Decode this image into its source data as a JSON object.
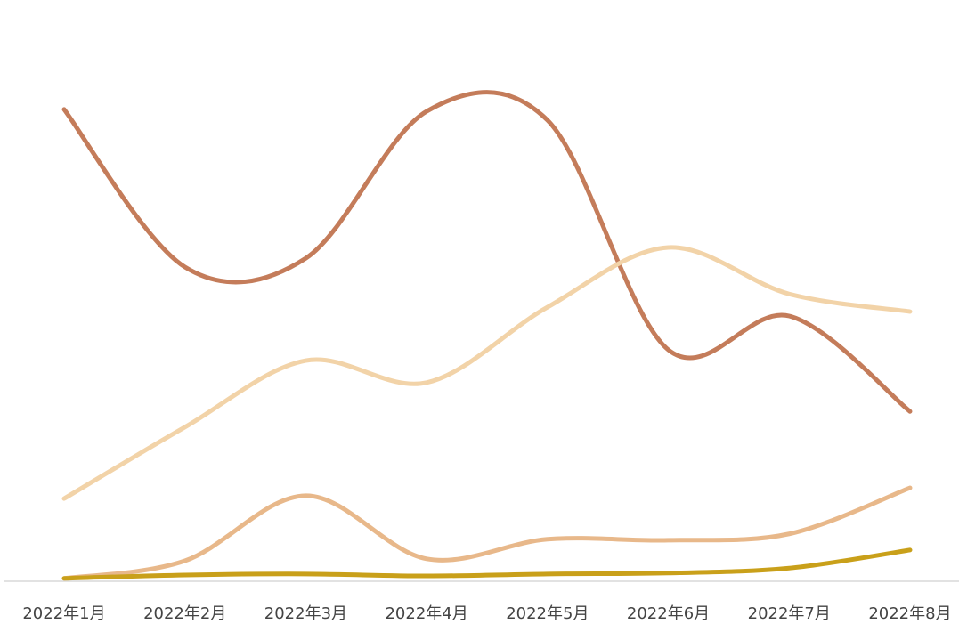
{
  "chart_data": {
    "type": "line",
    "categories": [
      "2022年1月",
      "2022年2月",
      "2022年3月",
      "2022年4月",
      "2022年5月",
      "2022年6月",
      "2022年7月",
      "2022年8月"
    ],
    "ylim": [
      0,
      100
    ],
    "series": [
      {
        "color": "#c47c5a",
        "values": [
          96.2,
          64,
          65.8,
          95.8,
          94,
          47.1,
          54,
          34.5
        ]
      },
      {
        "color": "#f2d3a8",
        "values": [
          16.7,
          31.3,
          44.9,
          40.4,
          55.8,
          68,
          58.5,
          54.9
        ]
      },
      {
        "color": "#e8b88a",
        "values": [
          0.4,
          4,
          17.3,
          4.4,
          8.4,
          8.2,
          9.5,
          18.9
        ]
      },
      {
        "color": "#c9a01a",
        "values": [
          0.4,
          1.1,
          1.3,
          0.9,
          1.3,
          1.5,
          2.5,
          6.2
        ]
      }
    ]
  }
}
